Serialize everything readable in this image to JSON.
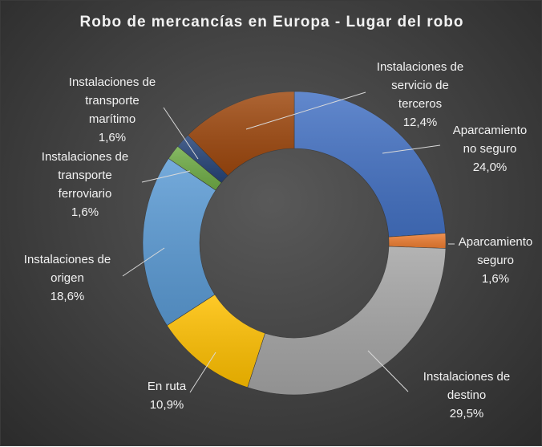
{
  "chart_data": {
    "type": "pie",
    "variant": "doughnut",
    "title": "Robo de mercancías en Europa - Lugar del robo",
    "slices": [
      {
        "name": "Aparcamiento no seguro",
        "lines": [
          "Aparcamiento",
          "no seguro"
        ],
        "value": 24.0,
        "value_label": "24,0%",
        "color": "#4472c4"
      },
      {
        "name": "Aparcamiento seguro",
        "lines": [
          "Aparcamiento",
          "seguro"
        ],
        "value": 1.6,
        "value_label": "1,6%",
        "color": "#ed7d31"
      },
      {
        "name": "Instalaciones de destino",
        "lines": [
          "Instalaciones de",
          "destino"
        ],
        "value": 29.5,
        "value_label": "29,5%",
        "color": "#a5a5a5"
      },
      {
        "name": "En ruta",
        "lines": [
          "En ruta"
        ],
        "value": 10.9,
        "value_label": "10,9%",
        "color": "#ffc000"
      },
      {
        "name": "Instalaciones de origen",
        "lines": [
          "Instalaciones de",
          "origen"
        ],
        "value": 18.6,
        "value_label": "18,6%",
        "color": "#5b9bd5"
      },
      {
        "name": "Instalaciones de transporte ferroviario",
        "lines": [
          "Instalaciones de",
          "transporte",
          "ferroviario"
        ],
        "value": 1.6,
        "value_label": "1,6%",
        "color": "#70ad47"
      },
      {
        "name": "Instalaciones de transporte marítimo",
        "lines": [
          "Instalaciones de",
          "transporte",
          "marítimo"
        ],
        "value": 1.6,
        "value_label": "1,6%",
        "color": "#264478"
      },
      {
        "name": "Instalaciones de servicio de terceros",
        "lines": [
          "Instalaciones de",
          "servicio de",
          "terceros"
        ],
        "value": 12.4,
        "value_label": "12,4%",
        "color": "#9e480e"
      }
    ]
  }
}
